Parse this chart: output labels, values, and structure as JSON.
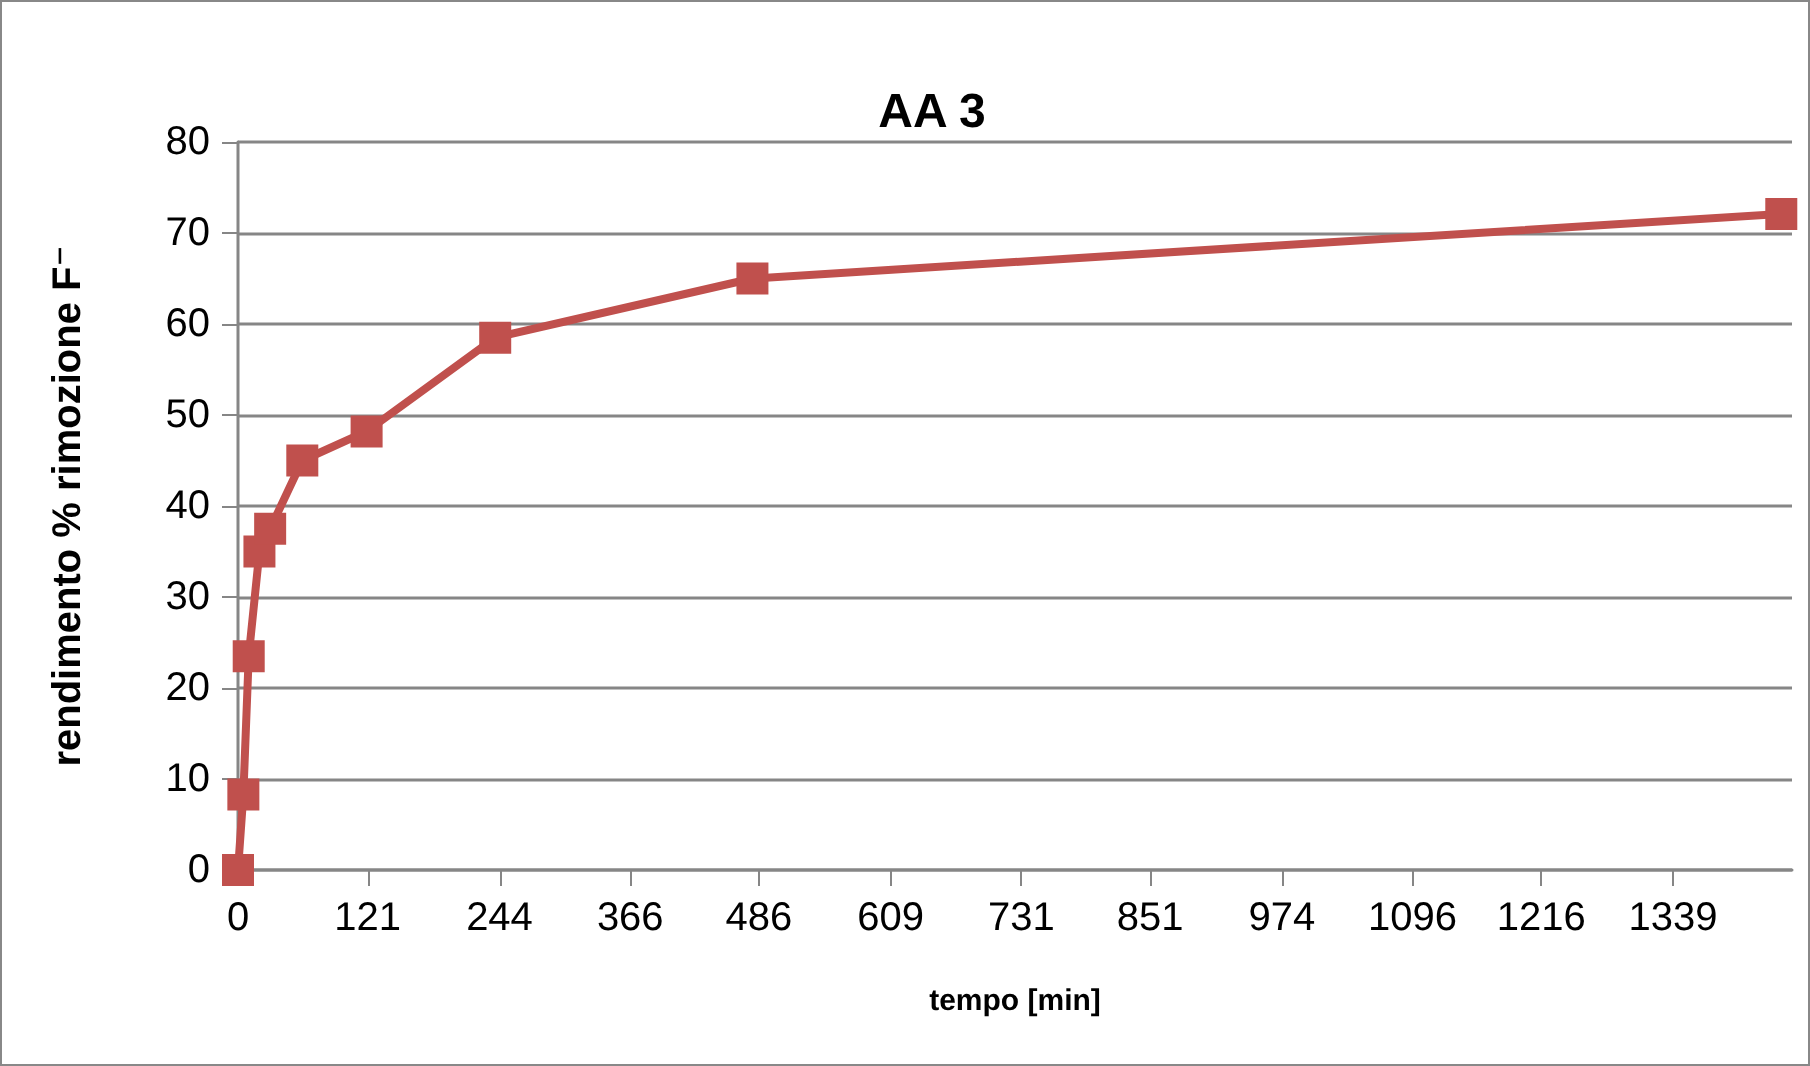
{
  "chart_data": {
    "type": "line",
    "title": "AA 3",
    "xlabel": "tempo [min]",
    "ylabel": "rendimento % rimozione F⁻",
    "x": [
      0,
      5,
      10,
      20,
      30,
      60,
      120,
      240,
      480,
      1440
    ],
    "series": [
      {
        "color": "#c0504d",
        "values": [
          0,
          8.3,
          23.5,
          35,
          37.5,
          45,
          48.2,
          58.5,
          65,
          72.1
        ]
      }
    ],
    "xlim": [
      0,
      1450
    ],
    "xticks": [
      0,
      121,
      244,
      366,
      486,
      609,
      731,
      851,
      974,
      1096,
      1216,
      1339
    ],
    "ylim": [
      0,
      80
    ],
    "yticks": [
      0,
      10,
      20,
      30,
      40,
      50,
      60,
      70,
      80
    ],
    "grid": "y",
    "marker": "square",
    "line_style": "solid"
  }
}
